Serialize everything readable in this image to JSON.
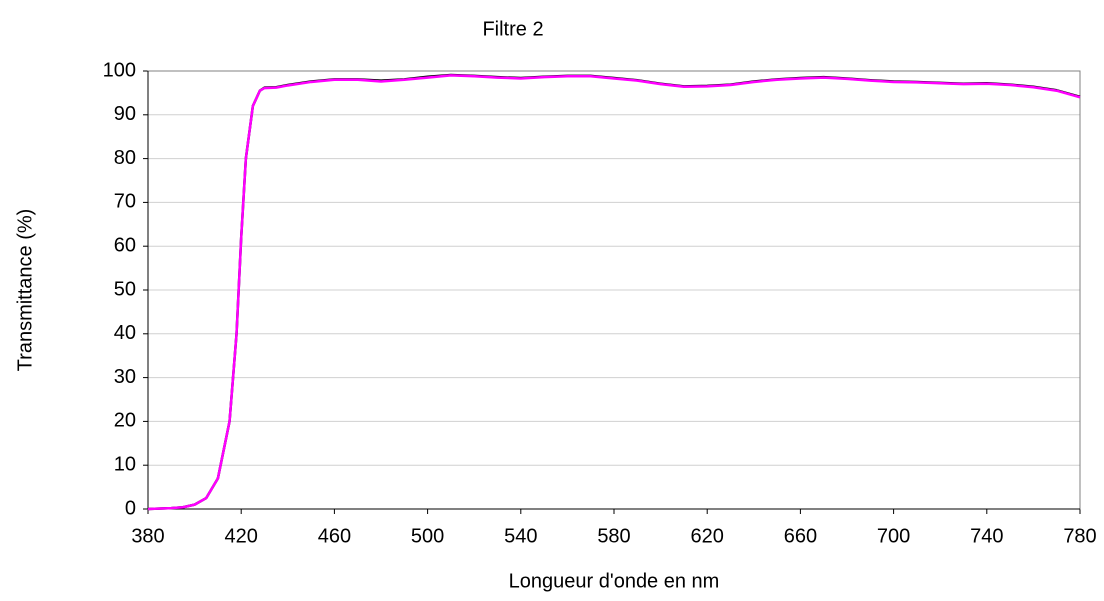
{
  "chart_data": {
    "type": "line",
    "title": "Filtre 2",
    "xlabel": "Longueur d'onde en nm",
    "ylabel": "Transmittance   (%)",
    "x": [
      380,
      390,
      395,
      400,
      405,
      410,
      415,
      418,
      420,
      422,
      425,
      428,
      430,
      435,
      440,
      450,
      460,
      470,
      480,
      490,
      500,
      510,
      520,
      530,
      540,
      550,
      560,
      570,
      580,
      590,
      600,
      610,
      620,
      630,
      640,
      650,
      660,
      670,
      680,
      690,
      700,
      710,
      720,
      730,
      740,
      750,
      760,
      770,
      780
    ],
    "series": [
      {
        "color": "#000000",
        "values": [
          0,
          0.2,
          0.4,
          1,
          2.5,
          7,
          20,
          40,
          62,
          80,
          92,
          95.5,
          96.2,
          96.3,
          96.8,
          97.6,
          98.1,
          98.1,
          97.8,
          98.1,
          98.7,
          99.1,
          98.9,
          98.6,
          98.4,
          98.7,
          98.9,
          98.9,
          98.4,
          97.9,
          97.1,
          96.5,
          96.6,
          96.9,
          97.6,
          98.1,
          98.4,
          98.6,
          98.3,
          97.9,
          97.6,
          97.5,
          97.3,
          97.1,
          97.2,
          96.9,
          96.4,
          95.6,
          94.1
        ]
      },
      {
        "color": "#ff00ff",
        "values": [
          0,
          0.2,
          0.4,
          1,
          2.5,
          7,
          20,
          40,
          62,
          80,
          92,
          95.5,
          96.1,
          96.2,
          96.7,
          97.5,
          98,
          98,
          97.6,
          98,
          98.5,
          99,
          98.8,
          98.5,
          98.3,
          98.6,
          98.8,
          98.8,
          98.3,
          97.8,
          97,
          96.4,
          96.5,
          96.8,
          97.5,
          98,
          98.3,
          98.5,
          98.2,
          97.8,
          97.5,
          97.4,
          97.2,
          97,
          97.1,
          96.8,
          96.3,
          95.5,
          94
        ]
      }
    ],
    "xlim": [
      380,
      780
    ],
    "xticks": [
      380,
      420,
      460,
      500,
      540,
      580,
      620,
      660,
      700,
      740,
      780
    ],
    "ylim": [
      0,
      100
    ],
    "yticks": [
      0,
      10,
      20,
      30,
      40,
      50,
      60,
      70,
      80,
      90,
      100
    ],
    "grid": true
  }
}
